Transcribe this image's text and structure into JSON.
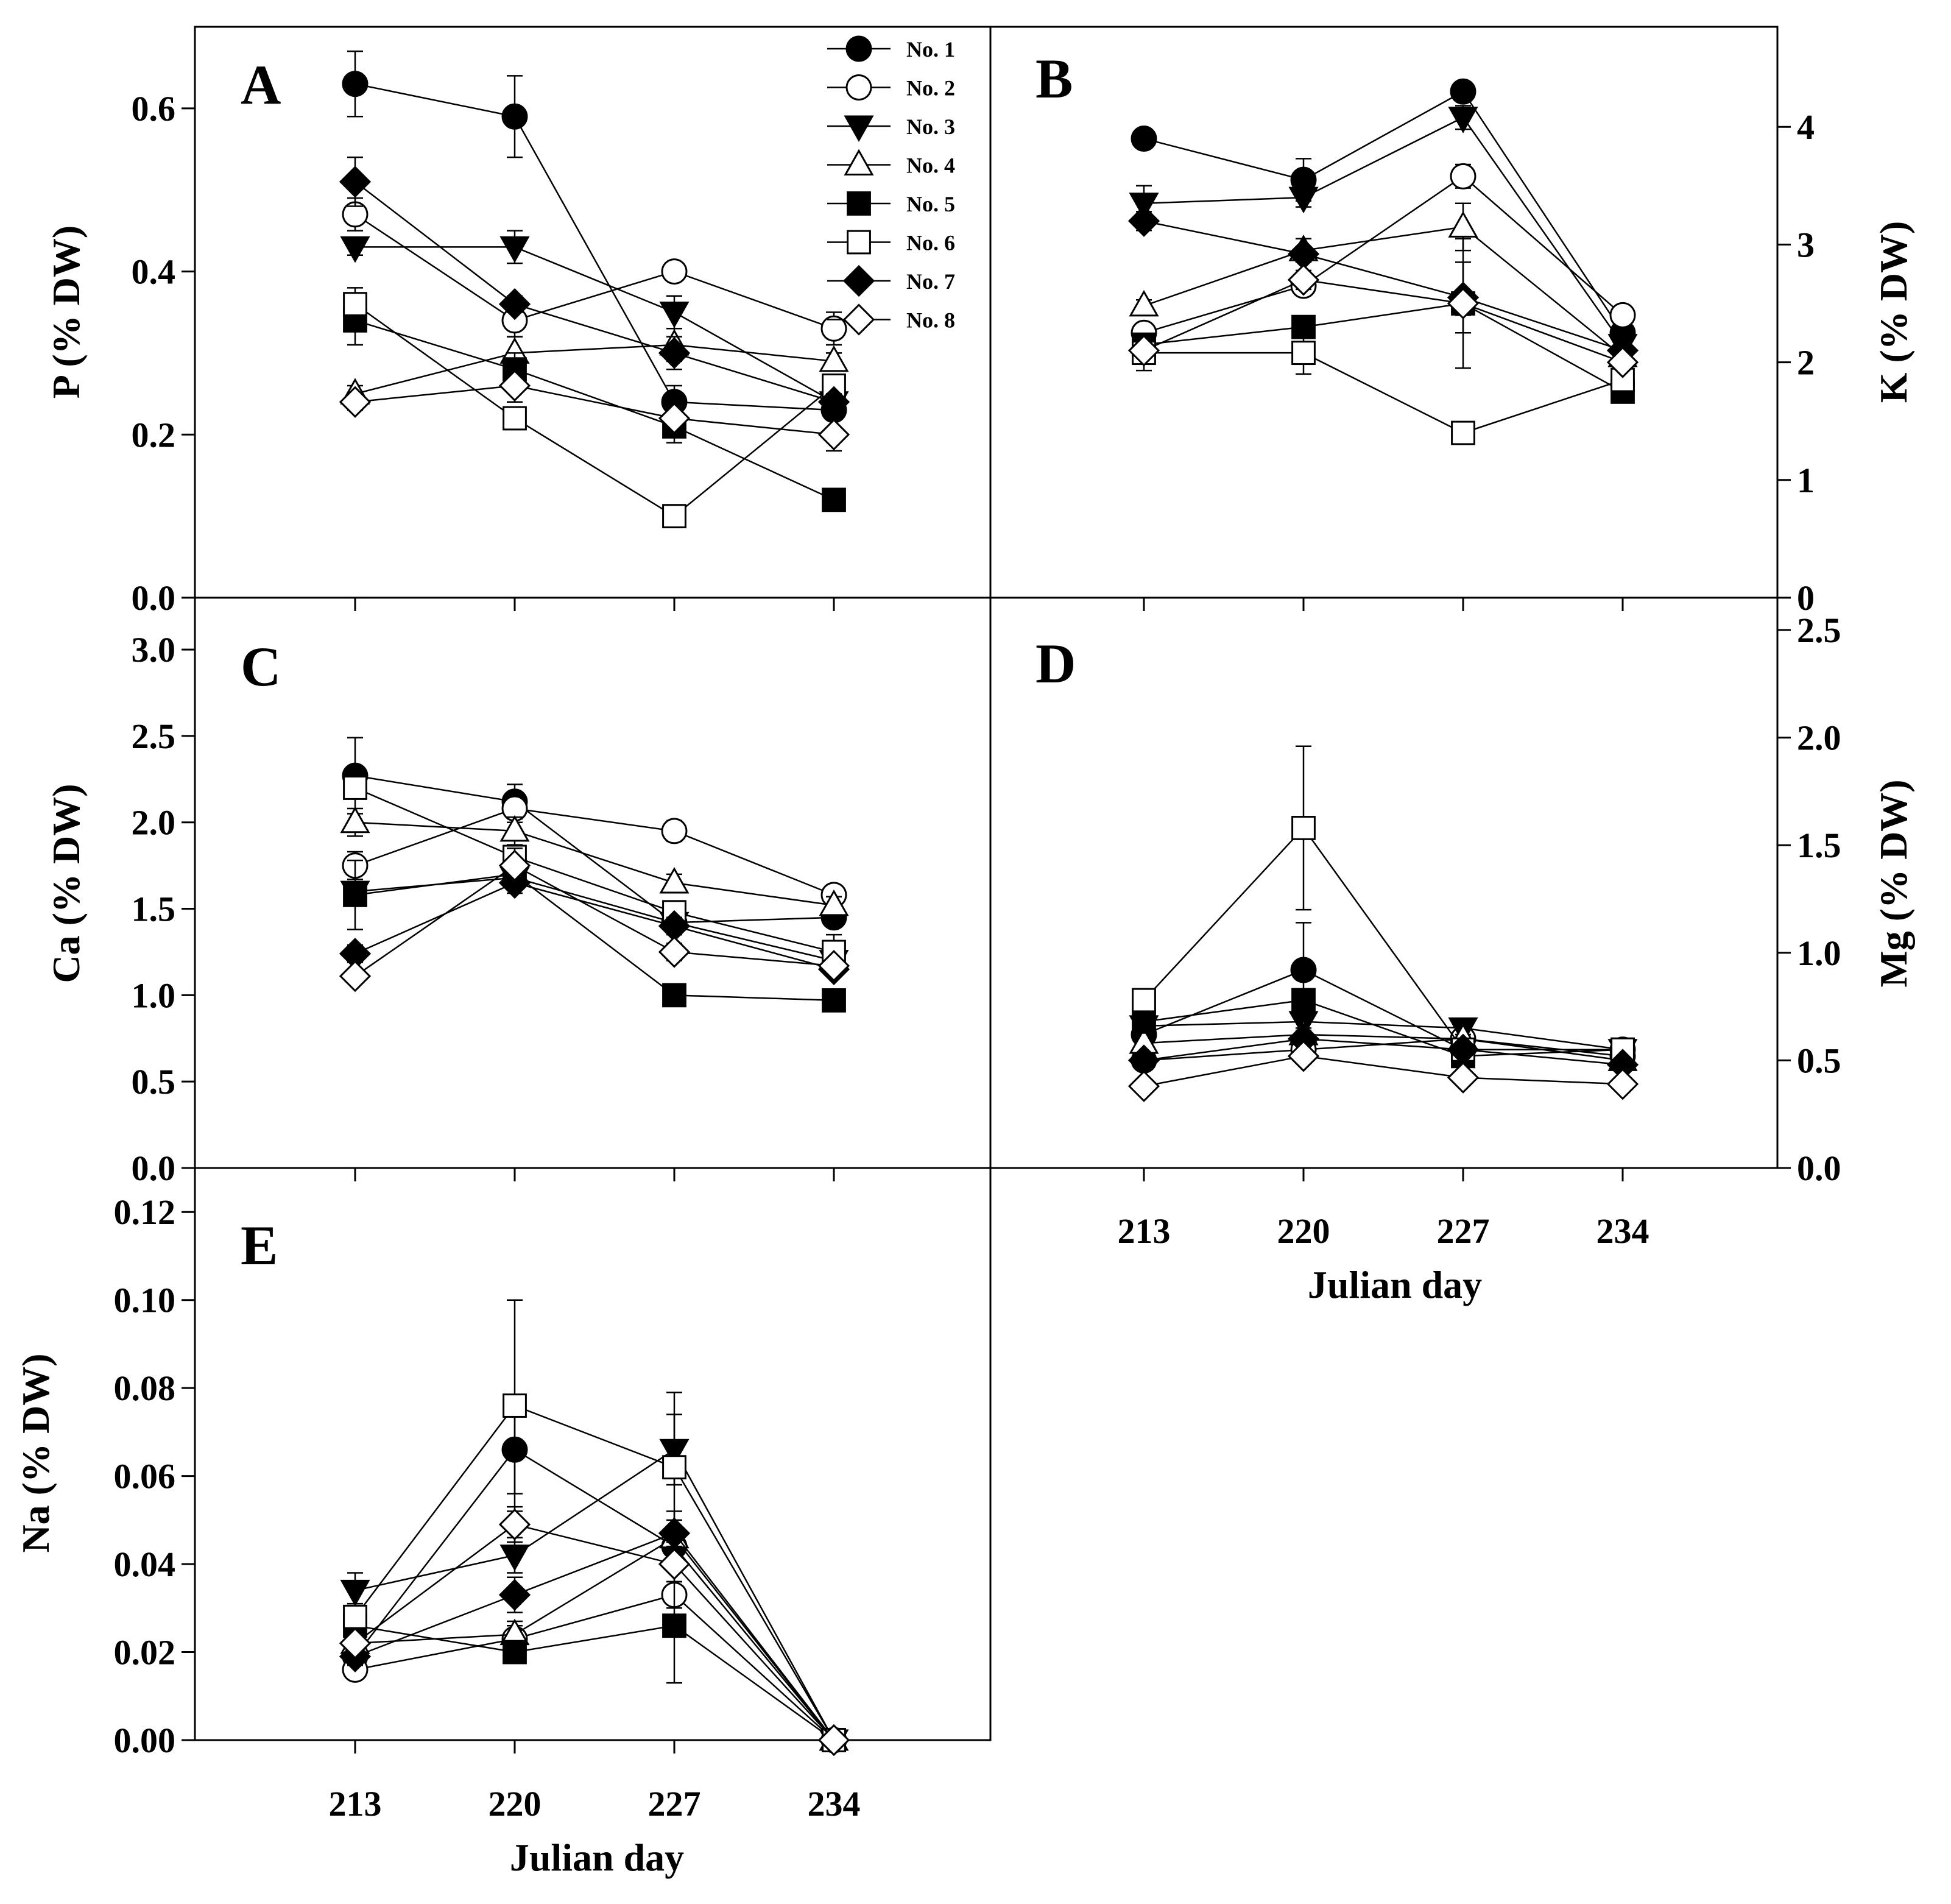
{
  "chart_data": {
    "type": "line",
    "x": [
      213,
      220,
      227,
      234
    ],
    "x_tick_labels": [
      "213",
      "220",
      "227",
      "234"
    ],
    "xlabel": "Julian day",
    "legend": {
      "placement": "top-right of panel A",
      "entries": [
        {
          "label": "No. 1",
          "marker": "circle",
          "fill": "#000000"
        },
        {
          "label": "No. 2",
          "marker": "circle",
          "fill": "#ffffff"
        },
        {
          "label": "No. 3",
          "marker": "triangle-down",
          "fill": "#000000"
        },
        {
          "label": "No. 4",
          "marker": "triangle-up",
          "fill": "#ffffff"
        },
        {
          "label": "No. 5",
          "marker": "square",
          "fill": "#000000"
        },
        {
          "label": "No. 6",
          "marker": "square",
          "fill": "#ffffff"
        },
        {
          "label": "No. 7",
          "marker": "diamond",
          "fill": "#000000"
        },
        {
          "label": "No. 8",
          "marker": "diamond",
          "fill": "#ffffff"
        }
      ]
    },
    "panels": [
      {
        "id": "A",
        "letter": "A",
        "ylabel": "P (% DW)",
        "y_axis_side": "left",
        "ylim": [
          0,
          0.7
        ],
        "yticks": [
          0.0,
          0.2,
          0.4,
          0.6
        ],
        "ytick_labels": [
          "0.0",
          "0.2",
          "0.4",
          "0.6"
        ],
        "series": [
          {
            "name": "No. 1",
            "values": [
              0.63,
              0.59,
              0.24,
              0.23
            ],
            "err": [
              0.04,
              0.05,
              0.02,
              0.01
            ]
          },
          {
            "name": "No. 2",
            "values": [
              0.47,
              0.34,
              0.4,
              0.33
            ],
            "err": [
              0.02,
              0.02,
              0.01,
              0.02
            ]
          },
          {
            "name": "No. 3",
            "values": [
              0.43,
              0.43,
              0.35,
              0.24
            ],
            "err": [
              0.01,
              0.02,
              0.02,
              0.01
            ]
          },
          {
            "name": "No. 4",
            "values": [
              0.25,
              0.3,
              0.31,
              0.29
            ],
            "err": [
              0.01,
              0.02,
              0.02,
              0.01
            ]
          },
          {
            "name": "No. 5",
            "values": [
              0.34,
              0.28,
              0.21,
              0.12
            ],
            "err": [
              0.03,
              0.02,
              0.02,
              0.01
            ]
          },
          {
            "name": "No. 6",
            "values": [
              0.36,
              0.22,
              0.1,
              0.26
            ],
            "err": [
              0.02,
              0.01,
              0.01,
              0.01
            ]
          },
          {
            "name": "No. 7",
            "values": [
              0.51,
              0.36,
              0.3,
              0.24
            ],
            "err": [
              0.03,
              0.01,
              0.02,
              0.01
            ]
          },
          {
            "name": "No. 8",
            "values": [
              0.24,
              0.26,
              0.22,
              0.2
            ],
            "err": [
              0.01,
              0.02,
              0.02,
              0.02
            ]
          }
        ]
      },
      {
        "id": "B",
        "letter": "B",
        "ylabel": "K (% DW)",
        "y_axis_side": "right",
        "ylim": [
          0,
          4.85
        ],
        "yticks": [
          0,
          1,
          2,
          3,
          4
        ],
        "ytick_labels": [
          "0",
          "1",
          "2",
          "3",
          "4"
        ],
        "series": [
          {
            "name": "No. 1",
            "values": [
              3.9,
              3.55,
              4.3,
              2.25
            ],
            "err": [
              0.05,
              0.18,
              0.05,
              0.08
            ]
          },
          {
            "name": "No. 2",
            "values": [
              2.25,
              2.65,
              3.58,
              2.4
            ],
            "err": [
              0.08,
              0.08,
              0.1,
              0.05
            ]
          },
          {
            "name": "No. 3",
            "values": [
              3.35,
              3.4,
              4.08,
              2.15
            ],
            "err": [
              0.15,
              0.08,
              0.1,
              0.05
            ]
          },
          {
            "name": "No. 4",
            "values": [
              2.48,
              2.95,
              3.15,
              2.05
            ],
            "err": [
              0.05,
              0.1,
              0.2,
              0.05
            ]
          },
          {
            "name": "No. 5",
            "values": [
              2.15,
              2.3,
              2.5,
              1.75
            ],
            "err": [
              0.05,
              0.08,
              0.1,
              0.05
            ]
          },
          {
            "name": "No. 6",
            "values": [
              2.08,
              2.08,
              1.4,
              1.85
            ],
            "err": [
              0.15,
              0.18,
              0.05,
              0.05
            ]
          },
          {
            "name": "No. 7",
            "values": [
              3.2,
              2.92,
              2.55,
              2.1
            ],
            "err": [
              0.08,
              0.05,
              0.3,
              0.05
            ]
          },
          {
            "name": "No. 8",
            "values": [
              2.1,
              2.7,
              2.5,
              2.0
            ],
            "err": [
              0.05,
              0.08,
              0.55,
              0.05
            ]
          }
        ]
      },
      {
        "id": "C",
        "letter": "C",
        "ylabel": "Ca (% DW)",
        "y_axis_side": "left",
        "ylim": [
          0,
          3.3
        ],
        "yticks": [
          0.0,
          0.5,
          1.0,
          1.5,
          2.0,
          2.5,
          3.0
        ],
        "ytick_labels": [
          "0.0",
          "0.5",
          "1.0",
          "1.5",
          "2.0",
          "2.5",
          "3.0"
        ],
        "series": [
          {
            "name": "No. 1",
            "values": [
              2.27,
              2.12,
              1.42,
              1.45
            ],
            "err": [
              0.22,
              0.1,
              0.05,
              0.05
            ]
          },
          {
            "name": "No. 2",
            "values": [
              1.75,
              2.08,
              1.95,
              1.58
            ],
            "err": [
              0.08,
              0.08,
              0.06,
              0.03
            ]
          },
          {
            "name": "No. 3",
            "values": [
              1.6,
              1.68,
              1.42,
              1.2
            ],
            "err": [
              0.05,
              0.05,
              0.05,
              0.05
            ]
          },
          {
            "name": "No. 4",
            "values": [
              2.0,
              1.95,
              1.65,
              1.52
            ],
            "err": [
              0.08,
              0.08,
              0.05,
              0.05
            ]
          },
          {
            "name": "No. 5",
            "values": [
              1.58,
              1.7,
              1.0,
              0.97
            ],
            "err": [
              0.2,
              0.05,
              0.03,
              0.03
            ]
          },
          {
            "name": "No. 6",
            "values": [
              2.2,
              1.8,
              1.48,
              1.25
            ],
            "err": [
              0.06,
              0.05,
              0.05,
              0.1
            ]
          },
          {
            "name": "No. 7",
            "values": [
              1.24,
              1.65,
              1.4,
              1.15
            ],
            "err": [
              0.05,
              0.06,
              0.05,
              0.03
            ]
          },
          {
            "name": "No. 8",
            "values": [
              1.11,
              1.75,
              1.25,
              1.17
            ],
            "err": [
              0.03,
              0.1,
              0.05,
              0.03
            ]
          }
        ]
      },
      {
        "id": "D",
        "letter": "D",
        "ylabel": "Mg (% DW)",
        "y_axis_side": "right",
        "ylim": [
          0,
          2.65
        ],
        "yticks": [
          0.0,
          0.5,
          1.0,
          1.5,
          2.0,
          2.5
        ],
        "ytick_labels": [
          "0.0",
          "0.5",
          "1.0",
          "1.5",
          "2.0",
          "2.5"
        ],
        "series": [
          {
            "name": "No. 1",
            "values": [
              0.62,
              0.92,
              0.55,
              0.55
            ],
            "err": [
              0.03,
              0.22,
              0.03,
              0.02
            ]
          },
          {
            "name": "No. 2",
            "values": [
              0.5,
              0.55,
              0.6,
              0.52
            ],
            "err": [
              0.02,
              0.02,
              0.02,
              0.02
            ]
          },
          {
            "name": "No. 3",
            "values": [
              0.66,
              0.68,
              0.65,
              0.55
            ],
            "err": [
              0.03,
              0.03,
              0.03,
              0.02
            ]
          },
          {
            "name": "No. 4",
            "values": [
              0.58,
              0.62,
              0.6,
              0.5
            ],
            "err": [
              0.02,
              0.02,
              0.02,
              0.02
            ]
          },
          {
            "name": "No. 5",
            "values": [
              0.68,
              0.78,
              0.52,
              0.55
            ],
            "err": [
              0.03,
              0.05,
              0.02,
              0.02
            ]
          },
          {
            "name": "No. 6",
            "values": [
              0.78,
              1.58,
              0.55,
              0.55
            ],
            "err": [
              0.03,
              0.38,
              0.02,
              0.02
            ]
          },
          {
            "name": "No. 7",
            "values": [
              0.5,
              0.6,
              0.55,
              0.48
            ],
            "err": [
              0.02,
              0.03,
              0.02,
              0.02
            ]
          },
          {
            "name": "No. 8",
            "values": [
              0.38,
              0.52,
              0.42,
              0.39
            ],
            "err": [
              0.02,
              0.02,
              0.02,
              0.02
            ]
          }
        ]
      },
      {
        "id": "E",
        "letter": "E",
        "ylabel": "Na (% DW)",
        "y_axis_side": "left",
        "ylim": [
          0,
          0.13
        ],
        "yticks": [
          0.0,
          0.02,
          0.04,
          0.06,
          0.08,
          0.1,
          0.12
        ],
        "ytick_labels": [
          "0.00",
          "0.02",
          "0.04",
          "0.06",
          "0.08",
          "0.10",
          "0.12"
        ],
        "series": [
          {
            "name": "No. 1",
            "values": [
              0.019,
              0.066,
              0.044,
              0.0
            ],
            "err": [
              0.002,
              0.01,
              0.004,
              0.0
            ]
          },
          {
            "name": "No. 2",
            "values": [
              0.016,
              0.023,
              0.033,
              0.0
            ],
            "err": [
              0.001,
              0.003,
              0.003,
              0.0
            ]
          },
          {
            "name": "No. 3",
            "values": [
              0.034,
              0.042,
              0.066,
              0.0
            ],
            "err": [
              0.004,
              0.004,
              0.008,
              0.0
            ]
          },
          {
            "name": "No. 4",
            "values": [
              0.022,
              0.024,
              0.046,
              0.0
            ],
            "err": [
              0.002,
              0.003,
              0.004,
              0.0
            ]
          },
          {
            "name": "No. 5",
            "values": [
              0.026,
              0.02,
              0.026,
              0.0
            ],
            "err": [
              0.003,
              0.002,
              0.013,
              0.0
            ]
          },
          {
            "name": "No. 6",
            "values": [
              0.028,
              0.076,
              0.062,
              0.0
            ],
            "err": [
              0.003,
              0.024,
              0.017,
              0.0
            ]
          },
          {
            "name": "No. 7",
            "values": [
              0.019,
              0.033,
              0.047,
              0.0
            ],
            "err": [
              0.002,
              0.004,
              0.005,
              0.0
            ]
          },
          {
            "name": "No. 8",
            "values": [
              0.022,
              0.049,
              0.04,
              0.0
            ],
            "err": [
              0.002,
              0.004,
              0.004,
              0.0
            ]
          }
        ]
      }
    ]
  }
}
